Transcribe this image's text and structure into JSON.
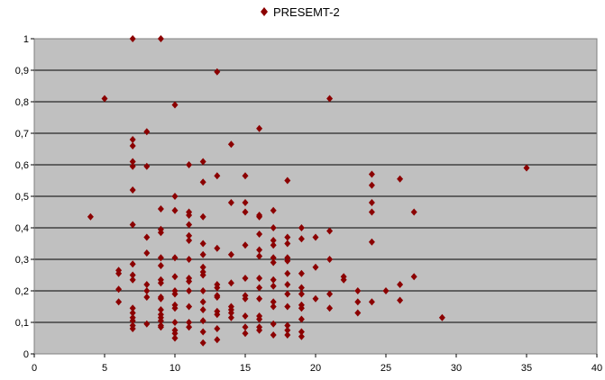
{
  "chart_data": {
    "type": "scatter",
    "title": "",
    "xlabel": "",
    "ylabel": "",
    "xlim": [
      0,
      40
    ],
    "ylim": [
      0,
      1
    ],
    "x_ticks": [
      "0",
      "5",
      "10",
      "15",
      "20",
      "25",
      "30",
      "35",
      "40"
    ],
    "y_ticks": [
      "0",
      "0,1",
      "0,2",
      "0,3",
      "0,4",
      "0,5",
      "0,6",
      "0,7",
      "0,8",
      "0,9",
      "1"
    ],
    "grid": true,
    "plot_background": "#c0c0c0",
    "marker": "diamond",
    "legend": {
      "position": "top-center",
      "entries": [
        "PRESEMT-2"
      ]
    },
    "series": [
      {
        "name": "PRESEMT-2",
        "color": "#8b0000",
        "points": [
          [
            4,
            0.435
          ],
          [
            5,
            0.81
          ],
          [
            6,
            0.265
          ],
          [
            6,
            0.255
          ],
          [
            6,
            0.205
          ],
          [
            6,
            0.165
          ],
          [
            7,
            1.0
          ],
          [
            7,
            0.68
          ],
          [
            7,
            0.66
          ],
          [
            7,
            0.61
          ],
          [
            7,
            0.595
          ],
          [
            7,
            0.52
          ],
          [
            7,
            0.41
          ],
          [
            7,
            0.285
          ],
          [
            7,
            0.25
          ],
          [
            7,
            0.235
          ],
          [
            7,
            0.145
          ],
          [
            7,
            0.13
          ],
          [
            7,
            0.115
          ],
          [
            7,
            0.105
          ],
          [
            7,
            0.09
          ],
          [
            7,
            0.08
          ],
          [
            8,
            0.705
          ],
          [
            8,
            0.595
          ],
          [
            8,
            0.37
          ],
          [
            8,
            0.32
          ],
          [
            8,
            0.22
          ],
          [
            8,
            0.2
          ],
          [
            8,
            0.18
          ],
          [
            8,
            0.095
          ],
          [
            9,
            1.0
          ],
          [
            9,
            0.46
          ],
          [
            9,
            0.395
          ],
          [
            9,
            0.385
          ],
          [
            9,
            0.305
          ],
          [
            9,
            0.28
          ],
          [
            9,
            0.235
          ],
          [
            9,
            0.225
          ],
          [
            9,
            0.18
          ],
          [
            9,
            0.175
          ],
          [
            9,
            0.14
          ],
          [
            9,
            0.125
          ],
          [
            9,
            0.115
          ],
          [
            9,
            0.105
          ],
          [
            9,
            0.09
          ],
          [
            9,
            0.085
          ],
          [
            10,
            0.79
          ],
          [
            10,
            0.5
          ],
          [
            10,
            0.455
          ],
          [
            10,
            0.305
          ],
          [
            10,
            0.245
          ],
          [
            10,
            0.2
          ],
          [
            10,
            0.19
          ],
          [
            10,
            0.155
          ],
          [
            10,
            0.145
          ],
          [
            10,
            0.1
          ],
          [
            10,
            0.075
          ],
          [
            10,
            0.065
          ],
          [
            10,
            0.05
          ],
          [
            11,
            0.6
          ],
          [
            11,
            0.45
          ],
          [
            11,
            0.44
          ],
          [
            11,
            0.41
          ],
          [
            11,
            0.375
          ],
          [
            11,
            0.36
          ],
          [
            11,
            0.3
          ],
          [
            11,
            0.24
          ],
          [
            11,
            0.23
          ],
          [
            11,
            0.2
          ],
          [
            11,
            0.15
          ],
          [
            11,
            0.1
          ],
          [
            11,
            0.085
          ],
          [
            12,
            0.61
          ],
          [
            12,
            0.545
          ],
          [
            12,
            0.435
          ],
          [
            12,
            0.35
          ],
          [
            12,
            0.315
          ],
          [
            12,
            0.275
          ],
          [
            12,
            0.26
          ],
          [
            12,
            0.25
          ],
          [
            12,
            0.2
          ],
          [
            12,
            0.165
          ],
          [
            12,
            0.14
          ],
          [
            12,
            0.105
          ],
          [
            12,
            0.07
          ],
          [
            12,
            0.035
          ],
          [
            13,
            0.895
          ],
          [
            13,
            0.565
          ],
          [
            13,
            0.335
          ],
          [
            13,
            0.22
          ],
          [
            13,
            0.21
          ],
          [
            13,
            0.185
          ],
          [
            13,
            0.18
          ],
          [
            13,
            0.135
          ],
          [
            13,
            0.125
          ],
          [
            13,
            0.08
          ],
          [
            13,
            0.045
          ],
          [
            14,
            0.665
          ],
          [
            14,
            0.48
          ],
          [
            14,
            0.315
          ],
          [
            14,
            0.225
          ],
          [
            14,
            0.15
          ],
          [
            14,
            0.14
          ],
          [
            14,
            0.13
          ],
          [
            14,
            0.115
          ],
          [
            15,
            0.565
          ],
          [
            15,
            0.48
          ],
          [
            15,
            0.45
          ],
          [
            15,
            0.345
          ],
          [
            15,
            0.24
          ],
          [
            15,
            0.185
          ],
          [
            15,
            0.175
          ],
          [
            15,
            0.12
          ],
          [
            15,
            0.085
          ],
          [
            15,
            0.065
          ],
          [
            16,
            0.715
          ],
          [
            16,
            0.44
          ],
          [
            16,
            0.435
          ],
          [
            16,
            0.38
          ],
          [
            16,
            0.33
          ],
          [
            16,
            0.31
          ],
          [
            16,
            0.24
          ],
          [
            16,
            0.21
          ],
          [
            16,
            0.175
          ],
          [
            16,
            0.12
          ],
          [
            16,
            0.11
          ],
          [
            16,
            0.085
          ],
          [
            16,
            0.075
          ],
          [
            17,
            0.455
          ],
          [
            17,
            0.4
          ],
          [
            17,
            0.36
          ],
          [
            17,
            0.345
          ],
          [
            17,
            0.305
          ],
          [
            17,
            0.29
          ],
          [
            17,
            0.235
          ],
          [
            17,
            0.215
          ],
          [
            17,
            0.165
          ],
          [
            17,
            0.15
          ],
          [
            17,
            0.095
          ],
          [
            17,
            0.06
          ],
          [
            18,
            0.55
          ],
          [
            18,
            0.37
          ],
          [
            18,
            0.35
          ],
          [
            18,
            0.305
          ],
          [
            18,
            0.295
          ],
          [
            18,
            0.255
          ],
          [
            18,
            0.22
          ],
          [
            18,
            0.19
          ],
          [
            18,
            0.15
          ],
          [
            18,
            0.09
          ],
          [
            18,
            0.075
          ],
          [
            18,
            0.06
          ],
          [
            19,
            0.4
          ],
          [
            19,
            0.365
          ],
          [
            19,
            0.255
          ],
          [
            19,
            0.21
          ],
          [
            19,
            0.19
          ],
          [
            19,
            0.155
          ],
          [
            19,
            0.145
          ],
          [
            19,
            0.11
          ],
          [
            19,
            0.07
          ],
          [
            19,
            0.055
          ],
          [
            20,
            0.37
          ],
          [
            20,
            0.275
          ],
          [
            20,
            0.175
          ],
          [
            21,
            0.81
          ],
          [
            21,
            0.39
          ],
          [
            21,
            0.3
          ],
          [
            21,
            0.19
          ],
          [
            21,
            0.145
          ],
          [
            22,
            0.245
          ],
          [
            22,
            0.235
          ],
          [
            23,
            0.2
          ],
          [
            23,
            0.165
          ],
          [
            23,
            0.13
          ],
          [
            24,
            0.57
          ],
          [
            24,
            0.535
          ],
          [
            24,
            0.48
          ],
          [
            24,
            0.45
          ],
          [
            24,
            0.355
          ],
          [
            24,
            0.165
          ],
          [
            25,
            0.2
          ],
          [
            26,
            0.555
          ],
          [
            26,
            0.22
          ],
          [
            26,
            0.17
          ],
          [
            27,
            0.45
          ],
          [
            27,
            0.245
          ],
          [
            29,
            0.115
          ],
          [
            35,
            0.59
          ]
        ]
      }
    ]
  }
}
